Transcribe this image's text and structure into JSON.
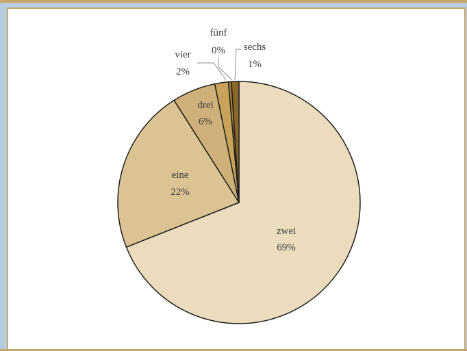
{
  "chart_data": {
    "type": "pie",
    "title": "",
    "start_angle_deg": 0,
    "direction": "clockwise",
    "slices": [
      {
        "label": "zwei",
        "pct_label": "69%",
        "value": 69.0,
        "color": "#ecdcbe"
      },
      {
        "label": "eine",
        "pct_label": "22%",
        "value": 22.0,
        "color": "#dcc394"
      },
      {
        "label": "drei",
        "pct_label": "6%",
        "value": 5.8,
        "color": "#d0b07a"
      },
      {
        "label": "vier",
        "pct_label": "2%",
        "value": 1.8,
        "color": "#c9a35a"
      },
      {
        "label": "fünf",
        "pct_label": "0%",
        "value": 0.4,
        "color": "#a8813a"
      },
      {
        "label": "sechs",
        "pct_label": "1%",
        "value": 1.0,
        "color": "#8a6828"
      }
    ]
  },
  "colors": {
    "outer_background": "#b8cce0",
    "frame_border": "#c8a86a",
    "slice_stroke": "#1e1e1e"
  }
}
